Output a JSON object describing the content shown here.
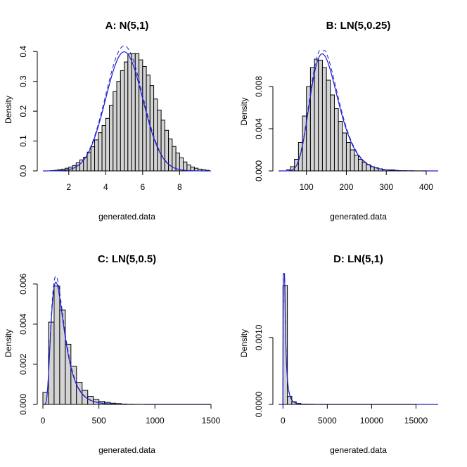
{
  "chart_data": [
    {
      "id": "A",
      "type": "bar",
      "title": "A: N(5,1)",
      "xlabel": "generated.data",
      "ylabel": "Density",
      "xlim": [
        0.6,
        9.7
      ],
      "ylim": [
        0,
        0.41
      ],
      "xticks": [
        2,
        4,
        6,
        8
      ],
      "yticks": [
        0,
        0.1,
        0.2,
        0.3,
        0.4
      ],
      "ytick_labels": [
        "0.0",
        "0.1",
        "0.2",
        "0.3",
        "0.4"
      ],
      "bin_start": 1.0,
      "bin_width": 0.2,
      "values": [
        0.001,
        0.002,
        0.004,
        0.006,
        0.009,
        0.013,
        0.018,
        0.027,
        0.037,
        0.046,
        0.063,
        0.081,
        0.104,
        0.128,
        0.152,
        0.176,
        0.22,
        0.266,
        0.3,
        0.336,
        0.365,
        0.392,
        0.393,
        0.393,
        0.372,
        0.35,
        0.321,
        0.286,
        0.241,
        0.204,
        0.17,
        0.136,
        0.107,
        0.082,
        0.06,
        0.044,
        0.03,
        0.02,
        0.013,
        0.009,
        0.006,
        0.004,
        0.002
      ],
      "curve": {
        "dist": "normal",
        "mean": 5,
        "sd": 1,
        "dashed_scale": 1.05
      }
    },
    {
      "id": "B",
      "type": "bar",
      "title": "B: LN(5,0.25)",
      "xlabel": "generated.data",
      "ylabel": "Density",
      "xlim": [
        30,
        430
      ],
      "ylim": [
        0,
        0.0106
      ],
      "xticks": [
        100,
        200,
        300,
        400
      ],
      "yticks": [
        0,
        0.004,
        0.008
      ],
      "ytick_labels": [
        "0.000",
        "0.004",
        "0.008"
      ],
      "bin_start": 50,
      "bin_width": 10,
      "values": [
        0.0001,
        0.0004,
        0.0011,
        0.0027,
        0.0052,
        0.008,
        0.0098,
        0.0106,
        0.0105,
        0.0098,
        0.0086,
        0.0072,
        0.0059,
        0.0047,
        0.0036,
        0.0027,
        0.002,
        0.0015,
        0.0011,
        0.0008,
        0.0006,
        0.0004,
        0.0003,
        0.0002,
        0.0001,
        0.0001,
        0.0001,
        5e-05
      ],
      "curve": {
        "dist": "lognormal",
        "meanlog": 5,
        "sdlog": 0.25,
        "dashed_scale": 1.05
      }
    },
    {
      "id": "C",
      "type": "bar",
      "title": "C: LN(5,0.5)",
      "xlabel": "generated.data",
      "ylabel": "Density",
      "xlim": [
        0,
        1500
      ],
      "ylim": [
        0,
        0.0061
      ],
      "xticks": [
        0,
        500,
        1000,
        1500
      ],
      "yticks": [
        0,
        0.002,
        0.004,
        0.006
      ],
      "ytick_labels": [
        "0.000",
        "0.002",
        "0.004",
        "0.006"
      ],
      "bin_start": 0,
      "bin_width": 50,
      "values": [
        0.0006,
        0.0041,
        0.0059,
        0.0047,
        0.003,
        0.0019,
        0.0011,
        0.0007,
        0.0004,
        0.00025,
        0.00015,
        0.0001,
        6e-05,
        4e-05,
        2e-05
      ],
      "curve": {
        "dist": "lognormal",
        "meanlog": 5,
        "sdlog": 0.5,
        "dashed_scale": 1.05
      }
    },
    {
      "id": "D",
      "type": "bar",
      "title": "D: LN(5,1)",
      "xlabel": "generated.data",
      "ylabel": "Density",
      "xlim": [
        -500,
        17500
      ],
      "ylim": [
        0,
        0.00183
      ],
      "xticks": [
        0,
        5000,
        10000,
        15000
      ],
      "yticks": [
        0,
        0.001
      ],
      "ytick_labels": [
        "0.0000",
        "0.0010"
      ],
      "bin_start": 0,
      "bin_width": 500,
      "values": [
        0.00178,
        0.00012,
        4e-05,
        1.5e-05,
        5e-06,
        3e-06,
        2e-06,
        1e-06,
        5e-07
      ],
      "curve": {
        "dist": "lognormal",
        "meanlog": 5,
        "sdlog": 1,
        "dashed_scale": 1.05
      }
    }
  ]
}
